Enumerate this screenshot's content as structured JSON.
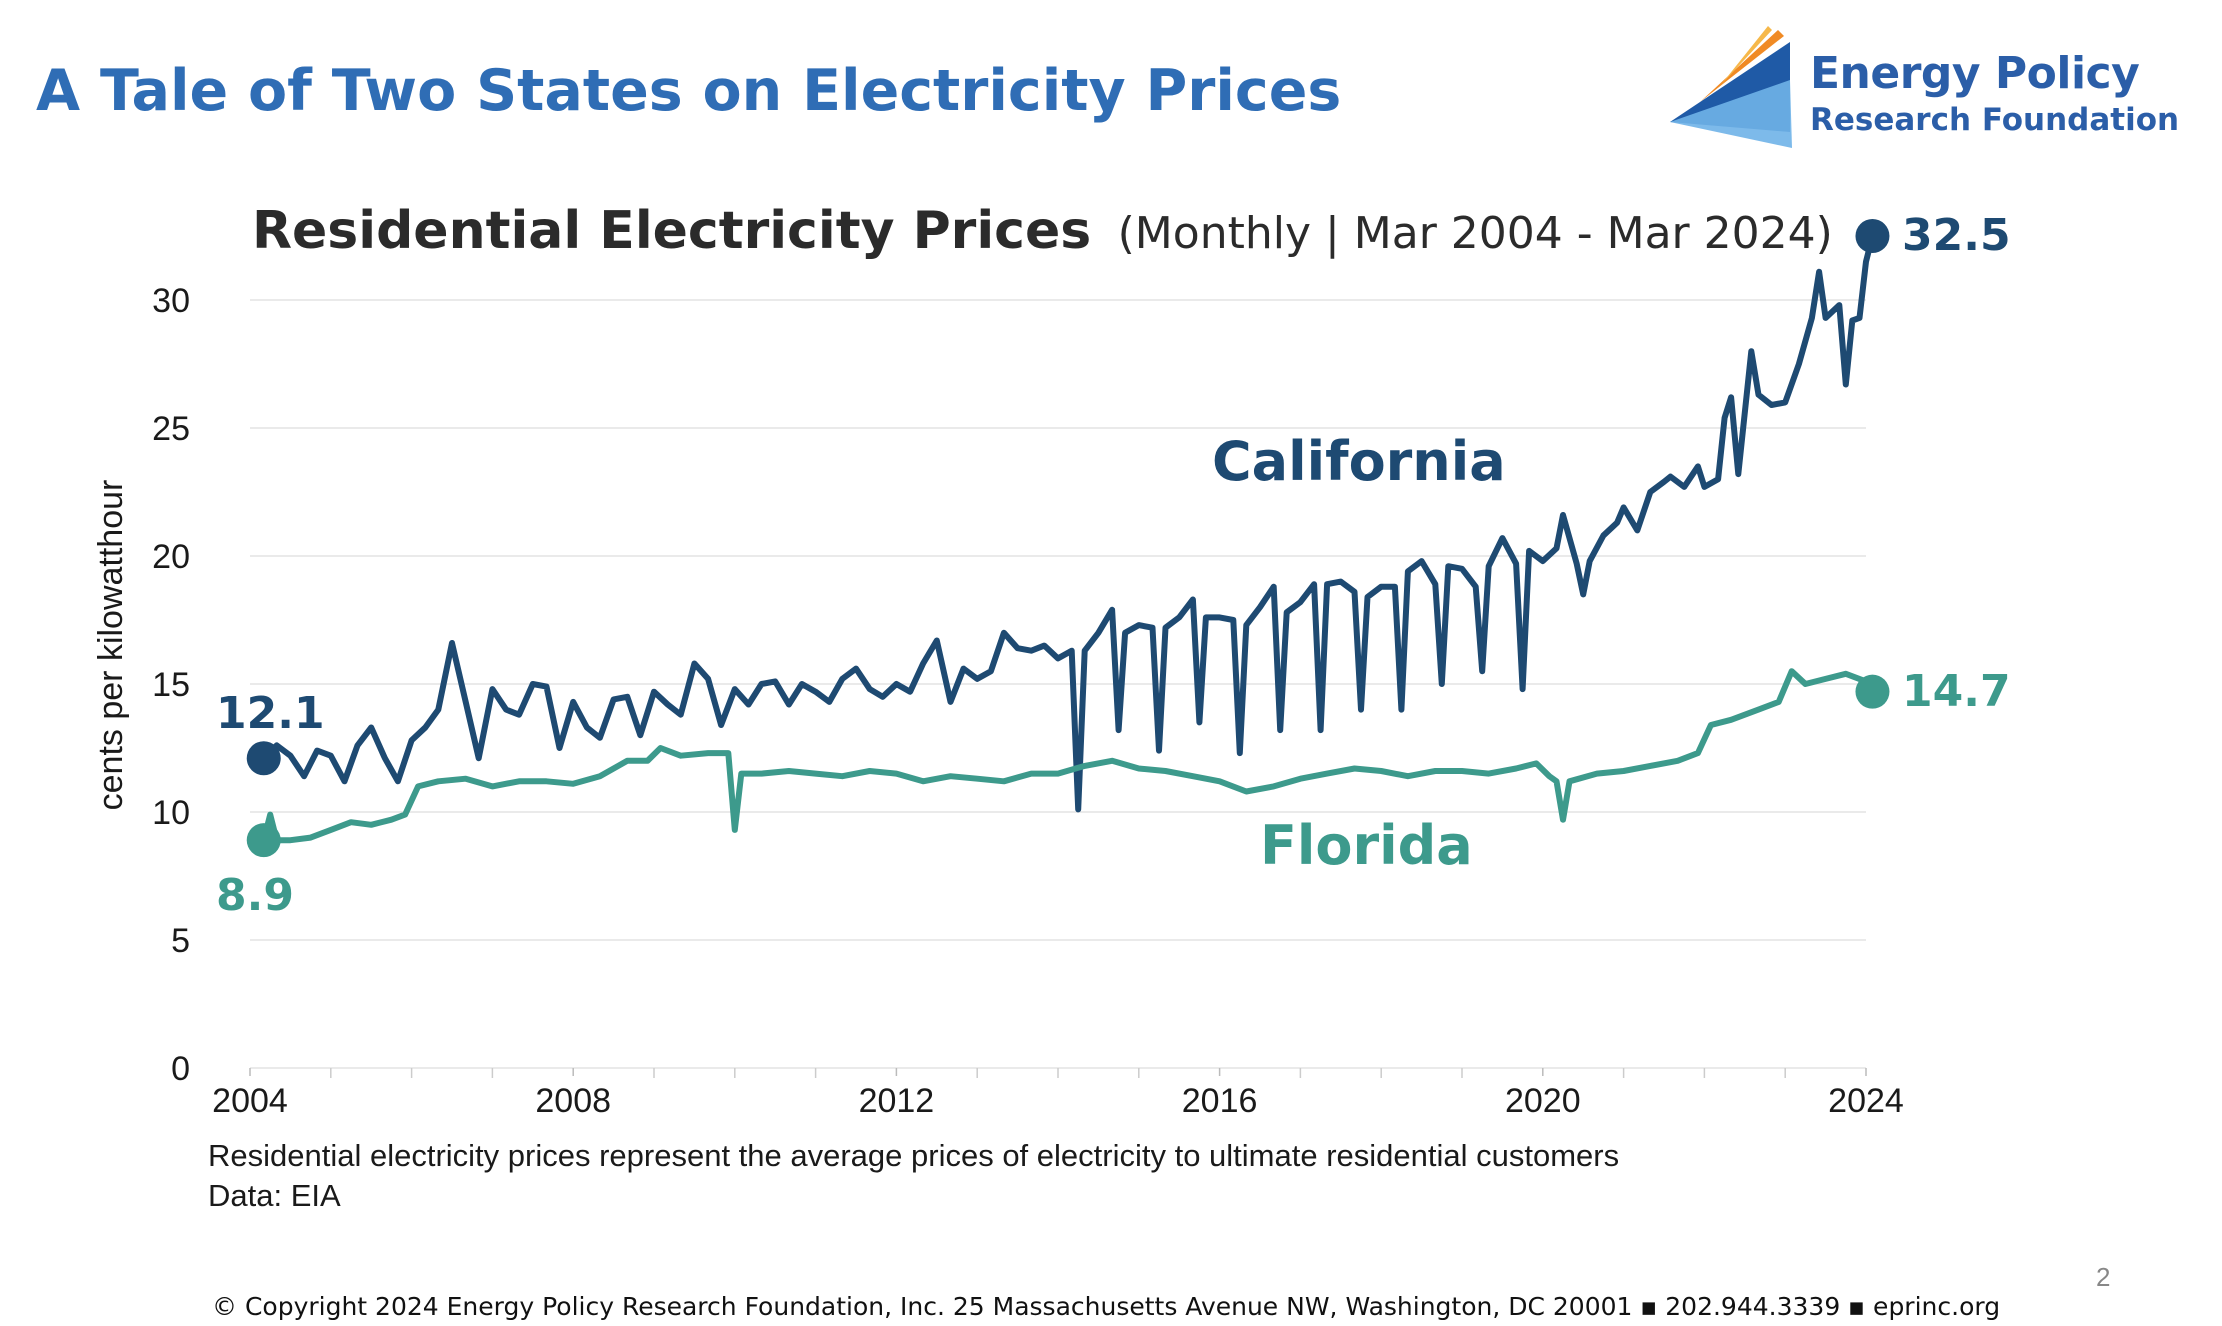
{
  "slide": {
    "title": "A Tale of Two States on Electricity Prices",
    "page_number": "2",
    "copyright": "© Copyright 2024 Energy Policy Research Foundation, Inc. 25 Massachusetts Avenue NW, Washington, DC 20001 ▪ 202.944.3339 ▪ eprinc.org"
  },
  "logo": {
    "line1": "Energy Policy",
    "line2": "Research Foundation",
    "colors": {
      "text": "#2b5ea8",
      "dark": "#1f5aa6",
      "light": "#6fb3e8",
      "orange": "#f08a24"
    }
  },
  "notes": [
    "Residential electricity prices represent the average prices of electricity to ultimate residential customers",
    "Data: EIA"
  ],
  "chart_data": {
    "type": "line",
    "title": "Residential Electricity Prices",
    "subtitle": "(Monthly | Mar 2004 - Mar 2024)",
    "ylabel": "cents per kilowatthour",
    "xlabel": "",
    "xlim": [
      2004,
      2024
    ],
    "ylim": [
      0,
      32.5
    ],
    "y_ticks": [
      0,
      5,
      10,
      15,
      20,
      25,
      30
    ],
    "x_ticks": [
      2004,
      2008,
      2012,
      2016,
      2020,
      2024
    ],
    "grid": "horizontal",
    "legend": "none",
    "series": [
      {
        "name": "California",
        "color": "#1e4a72",
        "start_label": "12.1",
        "end_label": "32.5",
        "points": [
          [
            2004.17,
            12.1
          ],
          [
            2004.33,
            12.6
          ],
          [
            2004.5,
            12.2
          ],
          [
            2004.67,
            11.4
          ],
          [
            2004.83,
            12.4
          ],
          [
            2005.0,
            12.2
          ],
          [
            2005.17,
            11.2
          ],
          [
            2005.33,
            12.6
          ],
          [
            2005.5,
            13.3
          ],
          [
            2005.67,
            12.1
          ],
          [
            2005.83,
            11.2
          ],
          [
            2006.0,
            12.8
          ],
          [
            2006.17,
            13.3
          ],
          [
            2006.33,
            14.0
          ],
          [
            2006.5,
            16.6
          ],
          [
            2006.67,
            14.3
          ],
          [
            2006.83,
            12.1
          ],
          [
            2007.0,
            14.8
          ],
          [
            2007.17,
            14.0
          ],
          [
            2007.33,
            13.8
          ],
          [
            2007.5,
            15.0
          ],
          [
            2007.67,
            14.9
          ],
          [
            2007.83,
            12.5
          ],
          [
            2008.0,
            14.3
          ],
          [
            2008.17,
            13.3
          ],
          [
            2008.33,
            12.9
          ],
          [
            2008.5,
            14.4
          ],
          [
            2008.67,
            14.5
          ],
          [
            2008.83,
            13.0
          ],
          [
            2009.0,
            14.7
          ],
          [
            2009.17,
            14.2
          ],
          [
            2009.33,
            13.8
          ],
          [
            2009.5,
            15.8
          ],
          [
            2009.67,
            15.2
          ],
          [
            2009.83,
            13.4
          ],
          [
            2010.0,
            14.8
          ],
          [
            2010.17,
            14.2
          ],
          [
            2010.33,
            15.0
          ],
          [
            2010.5,
            15.1
          ],
          [
            2010.67,
            14.2
          ],
          [
            2010.83,
            15.0
          ],
          [
            2011.0,
            14.7
          ],
          [
            2011.17,
            14.3
          ],
          [
            2011.33,
            15.2
          ],
          [
            2011.5,
            15.6
          ],
          [
            2011.67,
            14.8
          ],
          [
            2011.83,
            14.5
          ],
          [
            2012.0,
            15.0
          ],
          [
            2012.17,
            14.7
          ],
          [
            2012.33,
            15.8
          ],
          [
            2012.5,
            16.7
          ],
          [
            2012.67,
            14.3
          ],
          [
            2012.83,
            15.6
          ],
          [
            2013.0,
            15.2
          ],
          [
            2013.17,
            15.5
          ],
          [
            2013.33,
            17.0
          ],
          [
            2013.5,
            16.4
          ],
          [
            2013.67,
            16.3
          ],
          [
            2013.83,
            16.5
          ],
          [
            2014.0,
            16.0
          ],
          [
            2014.17,
            16.3
          ],
          [
            2014.25,
            10.1
          ],
          [
            2014.33,
            16.3
          ],
          [
            2014.5,
            17.0
          ],
          [
            2014.67,
            17.9
          ],
          [
            2014.75,
            13.2
          ],
          [
            2014.83,
            17.0
          ],
          [
            2015.0,
            17.3
          ],
          [
            2015.17,
            17.2
          ],
          [
            2015.25,
            12.4
          ],
          [
            2015.33,
            17.2
          ],
          [
            2015.5,
            17.6
          ],
          [
            2015.67,
            18.3
          ],
          [
            2015.75,
            13.5
          ],
          [
            2015.83,
            17.6
          ],
          [
            2016.0,
            17.6
          ],
          [
            2016.17,
            17.5
          ],
          [
            2016.25,
            12.3
          ],
          [
            2016.33,
            17.3
          ],
          [
            2016.5,
            18.0
          ],
          [
            2016.67,
            18.8
          ],
          [
            2016.75,
            13.2
          ],
          [
            2016.83,
            17.8
          ],
          [
            2017.0,
            18.2
          ],
          [
            2017.17,
            18.9
          ],
          [
            2017.25,
            13.2
          ],
          [
            2017.33,
            18.9
          ],
          [
            2017.5,
            19.0
          ],
          [
            2017.67,
            18.6
          ],
          [
            2017.75,
            14.0
          ],
          [
            2017.83,
            18.4
          ],
          [
            2018.0,
            18.8
          ],
          [
            2018.17,
            18.8
          ],
          [
            2018.25,
            14.0
          ],
          [
            2018.33,
            19.4
          ],
          [
            2018.5,
            19.8
          ],
          [
            2018.67,
            18.9
          ],
          [
            2018.75,
            15.0
          ],
          [
            2018.83,
            19.6
          ],
          [
            2019.0,
            19.5
          ],
          [
            2019.17,
            18.8
          ],
          [
            2019.25,
            15.5
          ],
          [
            2019.33,
            19.6
          ],
          [
            2019.5,
            20.7
          ],
          [
            2019.67,
            19.7
          ],
          [
            2019.75,
            14.8
          ],
          [
            2019.83,
            20.2
          ],
          [
            2020.0,
            19.8
          ],
          [
            2020.17,
            20.3
          ],
          [
            2020.25,
            21.6
          ],
          [
            2020.42,
            19.7
          ],
          [
            2020.5,
            18.5
          ],
          [
            2020.58,
            19.8
          ],
          [
            2020.75,
            20.8
          ],
          [
            2020.92,
            21.3
          ],
          [
            2021.0,
            21.9
          ],
          [
            2021.17,
            21.0
          ],
          [
            2021.33,
            22.5
          ],
          [
            2021.5,
            22.9
          ],
          [
            2021.58,
            23.1
          ],
          [
            2021.75,
            22.7
          ],
          [
            2021.92,
            23.5
          ],
          [
            2022.0,
            22.7
          ],
          [
            2022.17,
            23.0
          ],
          [
            2022.25,
            25.4
          ],
          [
            2022.33,
            26.2
          ],
          [
            2022.42,
            23.2
          ],
          [
            2022.58,
            28.0
          ],
          [
            2022.67,
            26.3
          ],
          [
            2022.83,
            25.9
          ],
          [
            2023.0,
            26.0
          ],
          [
            2023.17,
            27.5
          ],
          [
            2023.33,
            29.3
          ],
          [
            2023.42,
            31.1
          ],
          [
            2023.5,
            29.3
          ],
          [
            2023.67,
            29.8
          ],
          [
            2023.75,
            26.7
          ],
          [
            2023.83,
            29.2
          ],
          [
            2023.92,
            29.3
          ],
          [
            2024.0,
            31.5
          ],
          [
            2024.08,
            32.5
          ]
        ]
      },
      {
        "name": "Florida",
        "color": "#3d9a8c",
        "start_label": "8.9",
        "end_label": "14.7",
        "points": [
          [
            2004.17,
            8.9
          ],
          [
            2004.25,
            9.9
          ],
          [
            2004.33,
            8.9
          ],
          [
            2004.5,
            8.9
          ],
          [
            2004.75,
            9.0
          ],
          [
            2005.0,
            9.3
          ],
          [
            2005.25,
            9.6
          ],
          [
            2005.5,
            9.5
          ],
          [
            2005.75,
            9.7
          ],
          [
            2005.92,
            9.9
          ],
          [
            2006.08,
            11.0
          ],
          [
            2006.33,
            11.2
          ],
          [
            2006.67,
            11.3
          ],
          [
            2007.0,
            11.0
          ],
          [
            2007.33,
            11.2
          ],
          [
            2007.67,
            11.2
          ],
          [
            2008.0,
            11.1
          ],
          [
            2008.33,
            11.4
          ],
          [
            2008.67,
            12.0
          ],
          [
            2008.92,
            12.0
          ],
          [
            2009.08,
            12.5
          ],
          [
            2009.33,
            12.2
          ],
          [
            2009.67,
            12.3
          ],
          [
            2009.92,
            12.3
          ],
          [
            2010.0,
            9.3
          ],
          [
            2010.08,
            11.5
          ],
          [
            2010.33,
            11.5
          ],
          [
            2010.67,
            11.6
          ],
          [
            2011.0,
            11.5
          ],
          [
            2011.33,
            11.4
          ],
          [
            2011.67,
            11.6
          ],
          [
            2012.0,
            11.5
          ],
          [
            2012.33,
            11.2
          ],
          [
            2012.67,
            11.4
          ],
          [
            2013.0,
            11.3
          ],
          [
            2013.33,
            11.2
          ],
          [
            2013.67,
            11.5
          ],
          [
            2014.0,
            11.5
          ],
          [
            2014.33,
            11.8
          ],
          [
            2014.67,
            12.0
          ],
          [
            2015.0,
            11.7
          ],
          [
            2015.33,
            11.6
          ],
          [
            2015.67,
            11.4
          ],
          [
            2016.0,
            11.2
          ],
          [
            2016.33,
            10.8
          ],
          [
            2016.67,
            11.0
          ],
          [
            2017.0,
            11.3
          ],
          [
            2017.33,
            11.5
          ],
          [
            2017.67,
            11.7
          ],
          [
            2018.0,
            11.6
          ],
          [
            2018.33,
            11.4
          ],
          [
            2018.67,
            11.6
          ],
          [
            2019.0,
            11.6
          ],
          [
            2019.33,
            11.5
          ],
          [
            2019.67,
            11.7
          ],
          [
            2019.92,
            11.9
          ],
          [
            2020.08,
            11.4
          ],
          [
            2020.17,
            11.2
          ],
          [
            2020.25,
            9.7
          ],
          [
            2020.33,
            11.2
          ],
          [
            2020.67,
            11.5
          ],
          [
            2021.0,
            11.6
          ],
          [
            2021.33,
            11.8
          ],
          [
            2021.67,
            12.0
          ],
          [
            2021.92,
            12.3
          ],
          [
            2022.08,
            13.4
          ],
          [
            2022.33,
            13.6
          ],
          [
            2022.67,
            14.0
          ],
          [
            2022.92,
            14.3
          ],
          [
            2023.08,
            15.5
          ],
          [
            2023.25,
            15.0
          ],
          [
            2023.5,
            15.2
          ],
          [
            2023.75,
            15.4
          ],
          [
            2024.0,
            15.1
          ],
          [
            2024.08,
            14.7
          ]
        ]
      }
    ]
  }
}
